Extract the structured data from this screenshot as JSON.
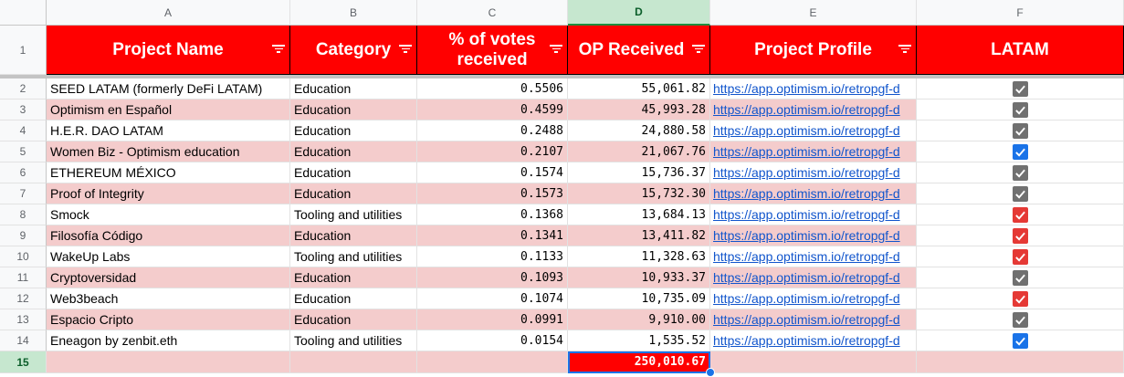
{
  "column_headers": [
    "A",
    "B",
    "C",
    "D",
    "E",
    "F"
  ],
  "selected_column": "D",
  "header_row_number": "1",
  "headers": {
    "project_name": "Project Name",
    "category": "Category",
    "votes_pct": "% of votes received",
    "op_received": "OP Received",
    "project_profile": "Project Profile",
    "latam": "LATAM"
  },
  "rows": [
    {
      "num": "2",
      "name": "SEED LATAM (formerly DeFi LATAM)",
      "category": "Education",
      "votes": "0.5506",
      "op": "55,061.82",
      "link": "https://app.optimism.io/retropgf-d",
      "checked": true,
      "check_color": "#707070",
      "highlight": false
    },
    {
      "num": "3",
      "name": "Optimism en Español",
      "category": "Education",
      "votes": "0.4599",
      "op": "45,993.28",
      "link": "https://app.optimism.io/retropgf-d",
      "checked": true,
      "check_color": "#707070",
      "highlight": true
    },
    {
      "num": "4",
      "name": "H.E.R. DAO LATAM",
      "category": "Education",
      "votes": "0.2488",
      "op": "24,880.58",
      "link": "https://app.optimism.io/retropgf-d",
      "checked": true,
      "check_color": "#707070",
      "highlight": false
    },
    {
      "num": "5",
      "name": "Women Biz - Optimism education",
      "category": "Education",
      "votes": "0.2107",
      "op": "21,067.76",
      "link": "https://app.optimism.io/retropgf-d",
      "checked": true,
      "check_color": "#1a73e8",
      "highlight": true
    },
    {
      "num": "6",
      "name": "ETHEREUM MÉXICO",
      "category": "Education",
      "votes": "0.1574",
      "op": "15,736.37",
      "link": "https://app.optimism.io/retropgf-d",
      "checked": true,
      "check_color": "#707070",
      "highlight": false
    },
    {
      "num": "7",
      "name": "Proof of Integrity",
      "category": "Education",
      "votes": "0.1573",
      "op": "15,732.30",
      "link": "https://app.optimism.io/retropgf-d",
      "checked": true,
      "check_color": "#707070",
      "highlight": true
    },
    {
      "num": "8",
      "name": "Smock",
      "category": "Tooling and utilities",
      "votes": "0.1368",
      "op": "13,684.13",
      "link": "https://app.optimism.io/retropgf-d",
      "checked": true,
      "check_color": "#e53935",
      "highlight": false
    },
    {
      "num": "9",
      "name": "Filosofía Código",
      "category": "Education",
      "votes": "0.1341",
      "op": "13,411.82",
      "link": "https://app.optimism.io/retropgf-d",
      "checked": true,
      "check_color": "#e53935",
      "highlight": true
    },
    {
      "num": "10",
      "name": "WakeUp Labs",
      "category": "Tooling and utilities",
      "votes": "0.1133",
      "op": "11,328.63",
      "link": "https://app.optimism.io/retropgf-d",
      "checked": true,
      "check_color": "#e53935",
      "highlight": false
    },
    {
      "num": "11",
      "name": "Cryptoversidad",
      "category": "Education",
      "votes": "0.1093",
      "op": "10,933.37",
      "link": "https://app.optimism.io/retropgf-d",
      "checked": true,
      "check_color": "#707070",
      "highlight": true
    },
    {
      "num": "12",
      "name": "Web3beach",
      "category": "Education",
      "votes": "0.1074",
      "op": "10,735.09",
      "link": "https://app.optimism.io/retropgf-d",
      "checked": true,
      "check_color": "#e53935",
      "highlight": false
    },
    {
      "num": "13",
      "name": "Espacio Cripto",
      "category": "Education",
      "votes": "0.0991",
      "op": "9,910.00",
      "link": "https://app.optimism.io/retropgf-d",
      "checked": true,
      "check_color": "#707070",
      "highlight": true
    },
    {
      "num": "14",
      "name": "Eneagon by zenbit.eth",
      "category": "Tooling and utilities",
      "votes": "0.0154",
      "op": "1,535.52",
      "link": "https://app.optimism.io/retropgf-d",
      "checked": true,
      "check_color": "#1a73e8",
      "highlight": false
    }
  ],
  "total_row": {
    "num": "15",
    "op_total": "250,010.67"
  },
  "colors": {
    "header_bg": "#ff0000",
    "highlight_row": "#f4cccc",
    "link": "#1155cc"
  }
}
